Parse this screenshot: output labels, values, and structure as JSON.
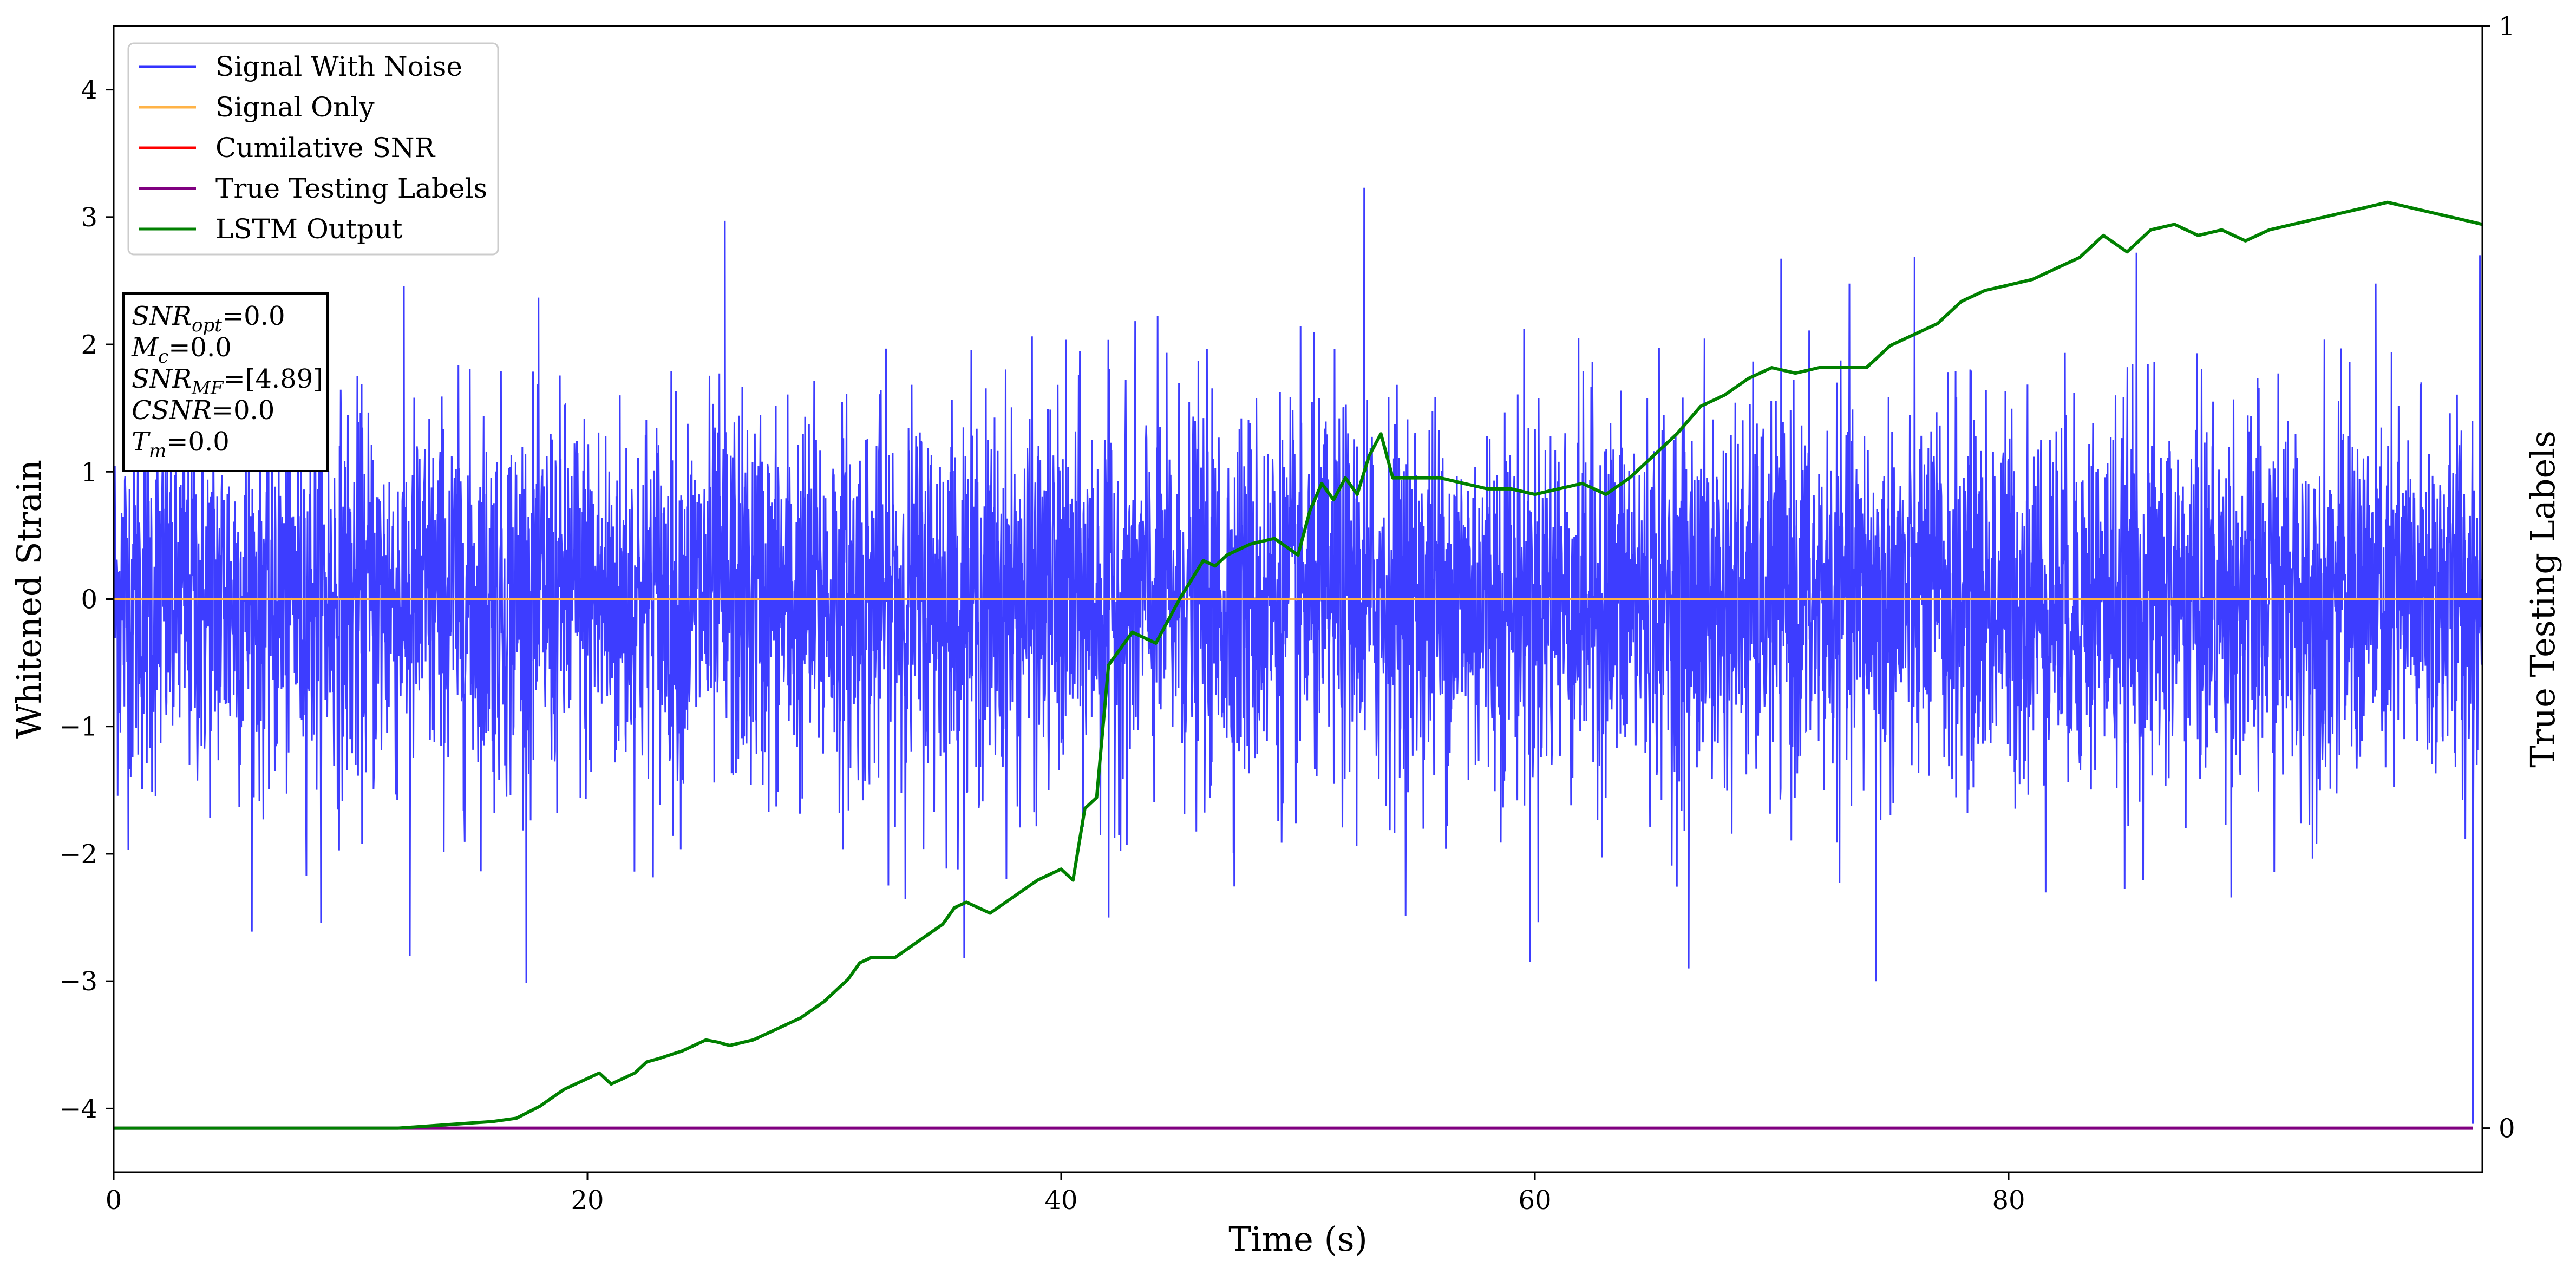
{
  "chart_data": {
    "type": "line",
    "xlabel": "Time (s)",
    "ylabel": "Whitened Strain",
    "y2label": "True Testing Labels",
    "xlim": [
      0,
      100
    ],
    "ylim": [
      -4.5,
      4.5
    ],
    "y2lim": [
      -0.04,
      1.0
    ],
    "x_ticks": [
      0,
      20,
      40,
      60,
      80
    ],
    "y_ticks": [
      -4,
      -3,
      -2,
      -1,
      0,
      1,
      2,
      3,
      4
    ],
    "y2_ticks": [
      0,
      1
    ],
    "grid": false,
    "legend_position": "top-left",
    "colors": {
      "signal_with_noise": "#3333ff",
      "signal_only": "#ffb347",
      "cumulative_snr": "#ff0000",
      "true_testing_labels": "#800080",
      "lstm_output": "#008000"
    },
    "legend": [
      {
        "label": "Signal With Noise",
        "color": "#3333ff"
      },
      {
        "label": "Signal Only",
        "color": "#ffb347"
      },
      {
        "label": "Cumilative SNR",
        "color": "#ff0000"
      },
      {
        "label": "True Testing Labels",
        "color": "#800080"
      },
      {
        "label": "LSTM Output",
        "color": "#008000"
      }
    ],
    "annotations": [
      {
        "name": "SNR",
        "sub": "opt",
        "value": "=0.0"
      },
      {
        "name": "M",
        "sub": "c",
        "value": "=0.0"
      },
      {
        "name": "SNR",
        "sub": "MF",
        "value": "=[4.89]"
      },
      {
        "name": "CSNR",
        "sub": "",
        "value": "=0.0"
      },
      {
        "name": "T",
        "sub": "m",
        "value": "=0.0"
      }
    ],
    "series": [
      {
        "name": "Signal With Noise",
        "axis": "left",
        "description": "whitened noise, envelope approx +/-1 with spikes",
        "x_range": [
          0,
          100
        ],
        "std": 0.75,
        "extremes": [
          {
            "x": 12.5,
            "y": -2.8
          },
          {
            "x": 25.8,
            "y": 2.97
          },
          {
            "x": 42.0,
            "y": -2.5
          },
          {
            "x": 52.8,
            "y": 3.23
          },
          {
            "x": 59.8,
            "y": -2.85
          },
          {
            "x": 66.5,
            "y": -2.9
          },
          {
            "x": 74.4,
            "y": -3.0
          },
          {
            "x": 85.4,
            "y": 2.72
          },
          {
            "x": 99.6,
            "y": -4.12
          },
          {
            "x": 99.9,
            "y": 2.7
          }
        ]
      },
      {
        "name": "Signal Only",
        "axis": "left",
        "x": [
          0,
          100
        ],
        "y": [
          0,
          0
        ]
      },
      {
        "name": "True Testing Labels",
        "axis": "right",
        "x": [
          0,
          99.6
        ],
        "y": [
          0,
          0
        ]
      },
      {
        "name": "LSTM Output",
        "axis": "right",
        "x": [
          0,
          10,
          12,
          14,
          16,
          17,
          18,
          19,
          20,
          20.5,
          21,
          22,
          22.5,
          23,
          24,
          24.5,
          25,
          25.5,
          26,
          27,
          28,
          28.5,
          29,
          30,
          30.5,
          31,
          31.5,
          32,
          33,
          34,
          35,
          35.5,
          36,
          37,
          38,
          39,
          39.5,
          40,
          40.5,
          41,
          41.5,
          42,
          43,
          44,
          45,
          46,
          46.5,
          47,
          48,
          49,
          50,
          50.5,
          51,
          51.5,
          52,
          52.5,
          53,
          53.5,
          54,
          55,
          56,
          57,
          58,
          59,
          60,
          61,
          62,
          63,
          64,
          65,
          66,
          67,
          68,
          69,
          70,
          71,
          72,
          73,
          74,
          75,
          76,
          77,
          78,
          79,
          80,
          81,
          82,
          83,
          84,
          85,
          86,
          87,
          88,
          89,
          90,
          91,
          92,
          93,
          94,
          95,
          96,
          97,
          98,
          99,
          100
        ],
        "y": [
          0.0,
          0.0,
          0.0,
          0.003,
          0.006,
          0.009,
          0.02,
          0.035,
          0.045,
          0.05,
          0.04,
          0.05,
          0.06,
          0.063,
          0.07,
          0.075,
          0.08,
          0.078,
          0.075,
          0.08,
          0.09,
          0.095,
          0.1,
          0.115,
          0.125,
          0.135,
          0.15,
          0.155,
          0.155,
          0.17,
          0.185,
          0.2,
          0.205,
          0.195,
          0.21,
          0.225,
          0.23,
          0.235,
          0.225,
          0.29,
          0.3,
          0.42,
          0.45,
          0.44,
          0.48,
          0.515,
          0.51,
          0.52,
          0.53,
          0.535,
          0.52,
          0.56,
          0.585,
          0.57,
          0.59,
          0.575,
          0.61,
          0.63,
          0.59,
          0.59,
          0.59,
          0.585,
          0.58,
          0.58,
          0.575,
          0.58,
          0.585,
          0.575,
          0.59,
          0.61,
          0.63,
          0.655,
          0.665,
          0.68,
          0.69,
          0.685,
          0.69,
          0.69,
          0.69,
          0.71,
          0.72,
          0.73,
          0.75,
          0.76,
          0.765,
          0.77,
          0.78,
          0.79,
          0.81,
          0.795,
          0.815,
          0.82,
          0.81,
          0.815,
          0.805,
          0.815,
          0.82,
          0.825,
          0.83,
          0.835,
          0.84,
          0.835,
          0.83,
          0.825,
          0.82
        ]
      }
    ]
  }
}
